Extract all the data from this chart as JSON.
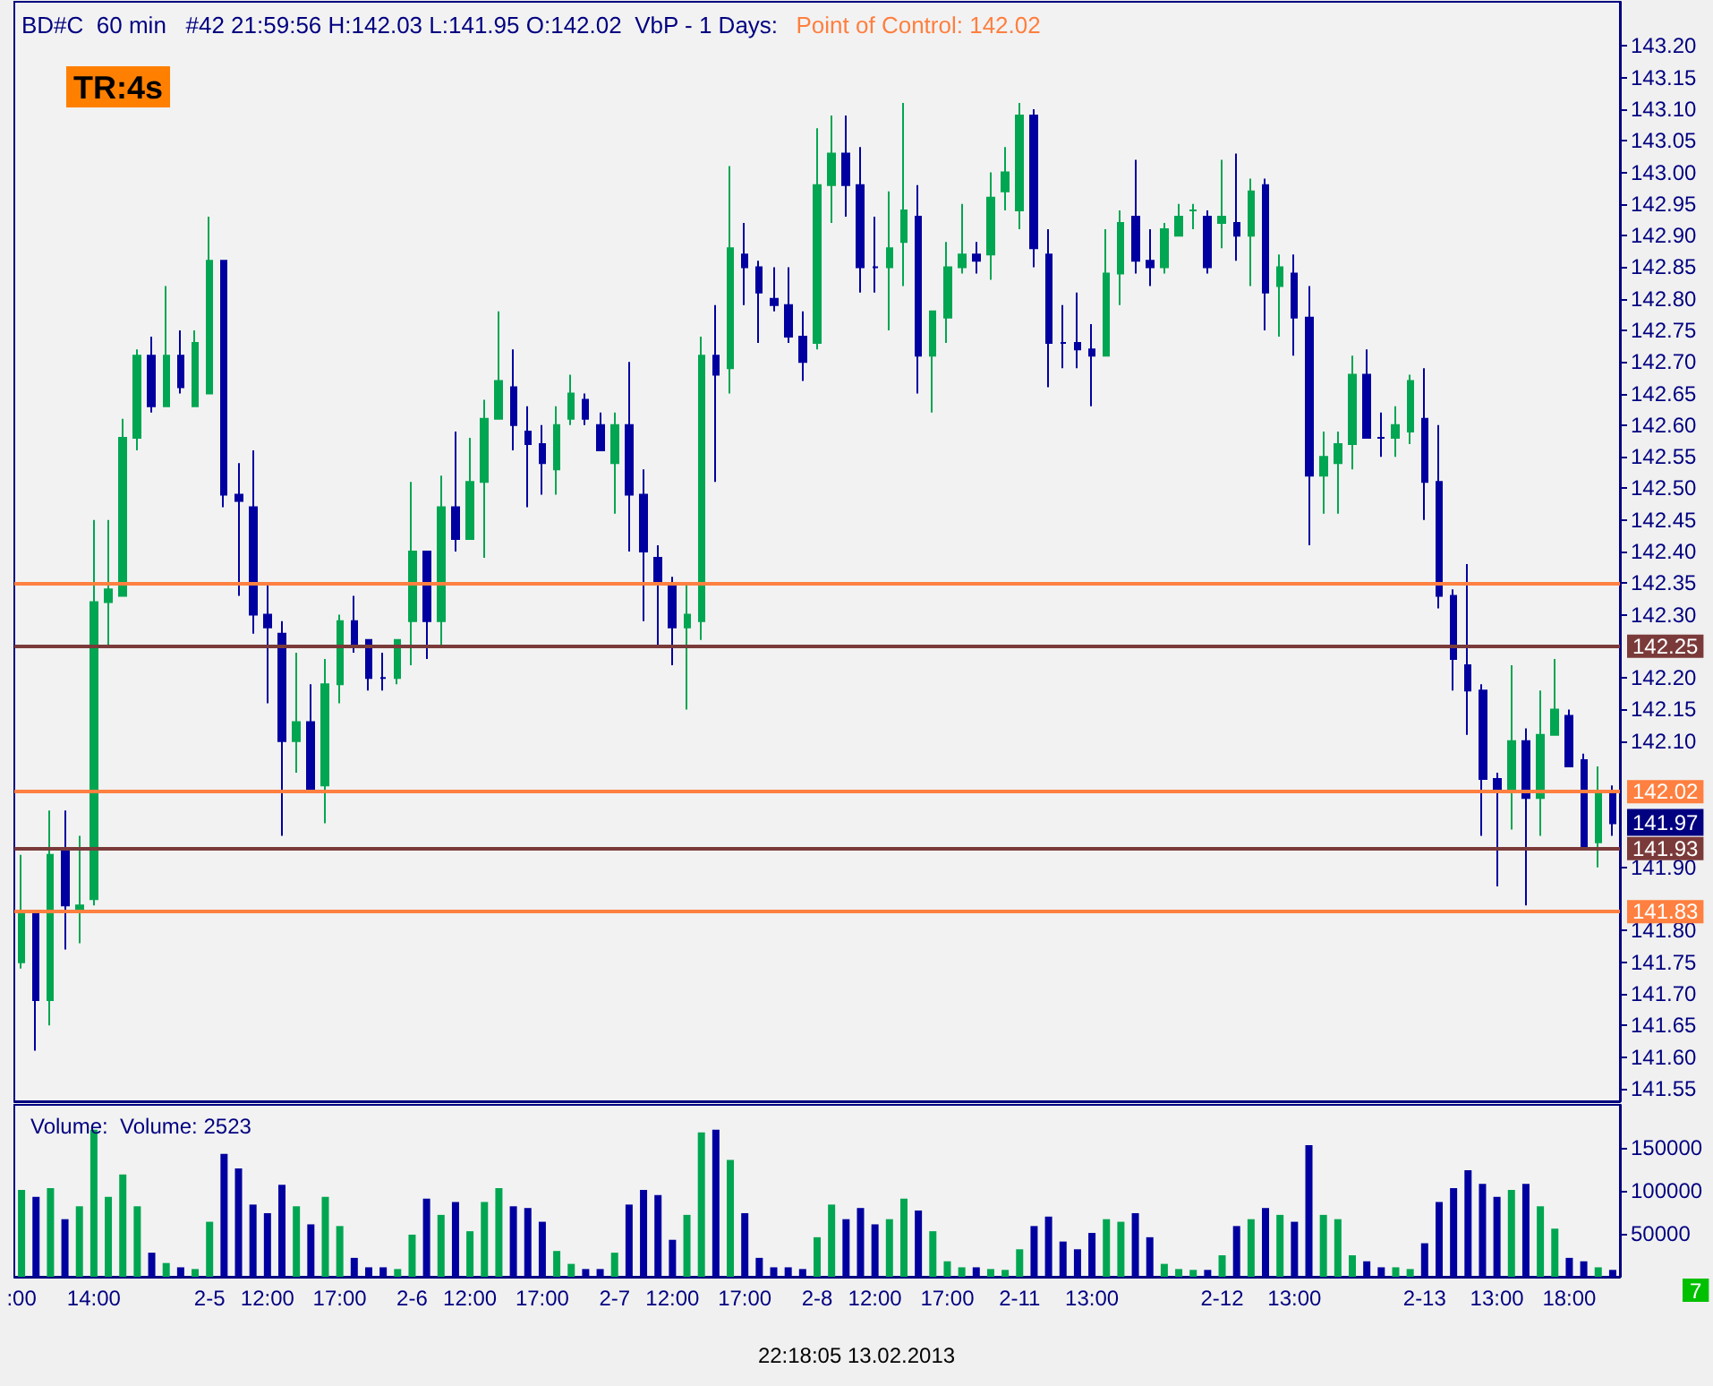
{
  "chart_data": [
    {
      "type": "candlestick",
      "title": "BD#C  60 min   #42 21:59:56 H:142.03 L:141.95 O:142.02  VbP - 1 Days:",
      "annotations": [
        "Point of Control: 142.02",
        "TR:4s",
        "141.97"
      ],
      "categories": [
        null,
        null,
        null,
        null,
        null,
        null,
        null,
        null,
        null,
        null,
        null,
        null,
        null,
        null,
        null,
        null,
        null,
        null,
        null,
        null,
        null,
        null,
        null,
        null,
        null,
        null,
        null,
        null,
        null,
        null,
        null,
        null,
        null,
        null,
        null,
        null,
        null,
        null,
        null,
        null,
        null,
        null,
        null,
        null,
        null,
        null,
        null,
        null,
        null,
        null,
        null,
        null,
        null,
        null,
        null,
        null,
        null,
        null,
        null,
        null,
        null,
        null,
        null,
        null,
        null,
        null,
        null,
        null,
        null,
        null,
        null,
        null,
        null,
        null,
        null,
        null,
        null,
        null,
        null,
        null,
        null,
        null,
        null,
        null,
        null,
        null,
        null,
        null,
        null,
        null,
        null,
        null,
        null,
        null,
        null,
        null,
        null,
        null,
        null,
        null,
        null,
        null,
        null,
        null,
        null,
        null,
        null,
        null,
        null,
        null,
        null
      ],
      "ohlc": [
        [
          141.75,
          141.92,
          141.74,
          141.83
        ],
        [
          141.83,
          141.83,
          141.61,
          141.69
        ],
        [
          141.69,
          141.99,
          141.65,
          141.92
        ],
        [
          141.93,
          141.99,
          141.77,
          141.84
        ],
        [
          141.83,
          141.95,
          141.78,
          141.84
        ],
        [
          141.85,
          142.45,
          141.84,
          142.32
        ],
        [
          142.32,
          142.45,
          142.25,
          142.34
        ],
        [
          142.33,
          142.61,
          142.33,
          142.58
        ],
        [
          142.58,
          142.72,
          142.56,
          142.71
        ],
        [
          142.71,
          142.74,
          142.62,
          142.63
        ],
        [
          142.63,
          142.82,
          142.63,
          142.71
        ],
        [
          142.71,
          142.75,
          142.65,
          142.66
        ],
        [
          142.63,
          142.75,
          142.63,
          142.73
        ],
        [
          142.65,
          142.93,
          142.65,
          142.86
        ],
        [
          142.86,
          142.86,
          142.47,
          142.49
        ],
        [
          142.49,
          142.54,
          142.33,
          142.48
        ],
        [
          142.47,
          142.56,
          142.27,
          142.3
        ],
        [
          142.3,
          142.35,
          142.16,
          142.28
        ],
        [
          142.27,
          142.29,
          141.95,
          142.1
        ],
        [
          142.1,
          142.24,
          142.05,
          142.13
        ],
        [
          142.13,
          142.19,
          142.02,
          142.02
        ],
        [
          142.03,
          142.23,
          141.97,
          142.19
        ],
        [
          142.19,
          142.3,
          142.16,
          142.29
        ],
        [
          142.29,
          142.33,
          142.24,
          142.25
        ],
        [
          142.26,
          142.26,
          142.18,
          142.2
        ],
        [
          142.2,
          142.24,
          142.18,
          142.2
        ],
        [
          142.2,
          142.26,
          142.19,
          142.26
        ],
        [
          142.29,
          142.51,
          142.22,
          142.4
        ],
        [
          142.4,
          142.4,
          142.23,
          142.29
        ],
        [
          142.29,
          142.52,
          142.25,
          142.47
        ],
        [
          142.47,
          142.59,
          142.4,
          142.42
        ],
        [
          142.42,
          142.58,
          142.42,
          142.51
        ],
        [
          142.51,
          142.64,
          142.39,
          142.61
        ],
        [
          142.61,
          142.78,
          142.61,
          142.67
        ],
        [
          142.66,
          142.72,
          142.56,
          142.6
        ],
        [
          142.59,
          142.63,
          142.47,
          142.57
        ],
        [
          142.57,
          142.6,
          142.49,
          142.54
        ],
        [
          142.53,
          142.63,
          142.49,
          142.6
        ],
        [
          142.61,
          142.68,
          142.6,
          142.65
        ],
        [
          142.64,
          142.65,
          142.6,
          142.61
        ],
        [
          142.6,
          142.62,
          142.56,
          142.56
        ],
        [
          142.54,
          142.62,
          142.46,
          142.6
        ],
        [
          142.6,
          142.7,
          142.4,
          142.49
        ],
        [
          142.49,
          142.53,
          142.29,
          142.4
        ],
        [
          142.39,
          142.41,
          142.25,
          142.35
        ],
        [
          142.35,
          142.36,
          142.22,
          142.28
        ],
        [
          142.28,
          142.35,
          142.15,
          142.3
        ],
        [
          142.29,
          142.74,
          142.26,
          142.71
        ],
        [
          142.71,
          142.79,
          142.51,
          142.68
        ],
        [
          142.69,
          143.01,
          142.65,
          142.88
        ],
        [
          142.87,
          142.92,
          142.79,
          142.85
        ],
        [
          142.85,
          142.86,
          142.73,
          142.81
        ],
        [
          142.8,
          142.85,
          142.78,
          142.79
        ],
        [
          142.79,
          142.85,
          142.73,
          142.74
        ],
        [
          142.74,
          142.78,
          142.67,
          142.7
        ],
        [
          142.73,
          143.07,
          142.72,
          142.98
        ],
        [
          142.98,
          143.09,
          142.92,
          143.03
        ],
        [
          143.03,
          143.09,
          142.93,
          142.98
        ],
        [
          142.98,
          143.04,
          142.81,
          142.85
        ],
        [
          142.85,
          142.93,
          142.81,
          142.85
        ],
        [
          142.85,
          142.97,
          142.75,
          142.88
        ],
        [
          142.89,
          143.11,
          142.82,
          142.94
        ],
        [
          142.93,
          142.98,
          142.65,
          142.71
        ],
        [
          142.71,
          142.78,
          142.62,
          142.78
        ],
        [
          142.77,
          142.89,
          142.73,
          142.85
        ],
        [
          142.85,
          142.95,
          142.84,
          142.87
        ],
        [
          142.87,
          142.89,
          142.84,
          142.86
        ],
        [
          142.87,
          143.0,
          142.83,
          142.96
        ],
        [
          142.97,
          143.04,
          142.94,
          143.0
        ],
        [
          142.94,
          143.11,
          142.91,
          143.09
        ],
        [
          143.09,
          143.1,
          142.85,
          142.88
        ],
        [
          142.87,
          142.91,
          142.66,
          142.73
        ],
        [
          142.73,
          142.79,
          142.69,
          142.73
        ],
        [
          142.73,
          142.81,
          142.69,
          142.72
        ],
        [
          142.72,
          142.76,
          142.63,
          142.71
        ],
        [
          142.71,
          142.91,
          142.71,
          142.84
        ],
        [
          142.84,
          142.94,
          142.79,
          142.92
        ],
        [
          142.93,
          143.02,
          142.84,
          142.86
        ],
        [
          142.86,
          142.91,
          142.82,
          142.85
        ],
        [
          142.85,
          142.92,
          142.84,
          142.91
        ],
        [
          142.9,
          142.95,
          142.9,
          142.93
        ],
        [
          142.94,
          142.95,
          142.91,
          142.94
        ],
        [
          142.93,
          142.94,
          142.84,
          142.85
        ],
        [
          142.92,
          143.02,
          142.88,
          142.93
        ],
        [
          142.92,
          143.03,
          142.86,
          142.9
        ],
        [
          142.9,
          142.99,
          142.82,
          142.97
        ],
        [
          142.98,
          142.99,
          142.75,
          142.81
        ],
        [
          142.82,
          142.87,
          142.74,
          142.85
        ],
        [
          142.84,
          142.87,
          142.71,
          142.77
        ],
        [
          142.77,
          142.82,
          142.41,
          142.52
        ],
        [
          142.52,
          142.59,
          142.46,
          142.55
        ],
        [
          142.54,
          142.59,
          142.46,
          142.57
        ],
        [
          142.57,
          142.71,
          142.53,
          142.68
        ],
        [
          142.68,
          142.72,
          142.58,
          142.58
        ],
        [
          142.58,
          142.62,
          142.55,
          142.58
        ],
        [
          142.58,
          142.63,
          142.55,
          142.6
        ],
        [
          142.59,
          142.68,
          142.57,
          142.67
        ],
        [
          142.61,
          142.69,
          142.45,
          142.51
        ],
        [
          142.51,
          142.6,
          142.31,
          142.33
        ],
        [
          142.33,
          142.34,
          142.18,
          142.23
        ],
        [
          142.22,
          142.38,
          142.11,
          142.18
        ],
        [
          142.18,
          142.19,
          141.95,
          142.04
        ],
        [
          142.04,
          142.05,
          141.87,
          142.02
        ],
        [
          142.02,
          142.22,
          141.96,
          142.1
        ],
        [
          142.1,
          142.12,
          141.84,
          142.01
        ],
        [
          142.01,
          142.18,
          141.95,
          142.11
        ],
        [
          142.11,
          142.23,
          142.11,
          142.15
        ],
        [
          142.14,
          142.15,
          142.06,
          142.06
        ],
        [
          142.07,
          142.08,
          141.93,
          141.93
        ],
        [
          141.94,
          142.06,
          141.9,
          142.02
        ],
        [
          142.02,
          142.03,
          141.95,
          141.97
        ]
      ],
      "colors": [
        "#00a651",
        "#0000a0",
        "#00a651",
        "#0000a0",
        "#00a651",
        "#00a651",
        "#00a651",
        "#00a651",
        "#00a651",
        "#0000a0",
        "#00a651",
        "#0000a0",
        "#00a651",
        "#00a651",
        "#0000a0",
        "#0000a0",
        "#0000a0",
        "#0000a0",
        "#0000a0",
        "#00a651",
        "#0000a0",
        "#00a651",
        "#00a651",
        "#0000a0",
        "#0000a0",
        "#0000a0",
        "#00a651",
        "#00a651",
        "#0000a0",
        "#00a651",
        "#0000a0",
        "#00a651",
        "#00a651",
        "#00a651",
        "#0000a0",
        "#0000a0",
        "#0000a0",
        "#00a651",
        "#00a651",
        "#0000a0",
        "#0000a0",
        "#00a651",
        "#0000a0",
        "#0000a0",
        "#0000a0",
        "#0000a0",
        "#00a651",
        "#00a651",
        "#0000a0",
        "#00a651",
        "#0000a0",
        "#0000a0",
        "#0000a0",
        "#0000a0",
        "#0000a0",
        "#00a651",
        "#00a651",
        "#0000a0",
        "#0000a0",
        "#0000a0",
        "#00a651",
        "#00a651",
        "#0000a0",
        "#00a651",
        "#00a651",
        "#00a651",
        "#0000a0",
        "#00a651",
        "#00a651",
        "#00a651",
        "#0000a0",
        "#0000a0",
        "#0000a0",
        "#0000a0",
        "#0000a0",
        "#00a651",
        "#00a651",
        "#0000a0",
        "#0000a0",
        "#00a651",
        "#00a651",
        "#00a651",
        "#0000a0",
        "#00a651",
        "#0000a0",
        "#00a651",
        "#0000a0",
        "#00a651",
        "#0000a0",
        "#0000a0",
        "#00a651",
        "#00a651",
        "#00a651",
        "#0000a0",
        "#0000a0",
        "#00a651",
        "#00a651",
        "#0000a0",
        "#0000a0",
        "#0000a0",
        "#0000a0",
        "#0000a0",
        "#0000a0",
        "#00a651",
        "#0000a0",
        "#00a651",
        "#00a651",
        "#0000a0",
        "#0000a0",
        "#00a651",
        "#0000a0"
      ],
      "ylim": [
        141.53,
        143.27
      ],
      "yticks": [
        141.55,
        {
          "value": 141.6,
          "label": "141.60"
        },
        141.65,
        {
          "value": 141.7,
          "label": "141.70"
        },
        141.75,
        {
          "value": 141.8,
          "label": "141.80"
        },
        {
          "value": 141.9,
          "label": "141.90"
        },
        {
          "value": 142.1,
          "label": "142.10"
        },
        142.15,
        {
          "value": 142.2,
          "label": "142.20"
        },
        {
          "value": 142.3,
          "label": "142.30"
        },
        142.35,
        {
          "value": 142.4,
          "label": "142.40"
        },
        142.45,
        {
          "value": 142.5,
          "label": "142.50"
        },
        142.55,
        {
          "value": 142.6,
          "label": "142.60"
        },
        142.65,
        {
          "value": 142.7,
          "label": "142.70"
        },
        142.75,
        {
          "value": 142.8,
          "label": "142.80"
        },
        142.85,
        {
          "value": 142.9,
          "label": "142.90"
        },
        142.95,
        {
          "value": 143,
          "label": "143.00"
        },
        143.05,
        {
          "value": 143.1,
          "label": "143.10"
        },
        143.15,
        {
          "value": 143.2,
          "label": "143.20"
        }
      ],
      "ref_lines": [
        {
          "axis": "y",
          "value": 142.35,
          "label": null,
          "color": "#ff8040"
        },
        {
          "axis": "y",
          "value": 142.25,
          "label": "142.25",
          "color": "#7b3a3a"
        },
        {
          "axis": "y",
          "value": 142.02,
          "label": "142.02",
          "color": "#ff8040"
        },
        {
          "axis": "y",
          "value": 141.93,
          "label": "141.93",
          "color": "#7b3a3a"
        },
        {
          "axis": "y",
          "value": 141.83,
          "label": "141.83",
          "color": "#ff8040"
        }
      ],
      "tick_labels": "y"
    },
    {
      "type": "bar",
      "title": "Volume:  Volume: 2523",
      "annotations": [
        "22:18:05 13.02.2013",
        "7"
      ],
      "categories": [
        ":00",
        null,
        null,
        null,
        null,
        "14:00",
        null,
        null,
        null,
        null,
        null,
        null,
        null,
        "2-5",
        null,
        null,
        null,
        "12:00",
        null,
        null,
        null,
        null,
        "17:00",
        null,
        null,
        null,
        null,
        "2-6",
        null,
        null,
        null,
        "12:00",
        null,
        null,
        null,
        null,
        "17:00",
        null,
        null,
        null,
        null,
        "2-7",
        null,
        null,
        null,
        "12:00",
        null,
        null,
        null,
        null,
        "17:00",
        null,
        null,
        null,
        null,
        "2-8",
        null,
        null,
        null,
        "12:00",
        null,
        null,
        null,
        null,
        "17:00",
        null,
        null,
        null,
        null,
        "2-11",
        null,
        null,
        null,
        null,
        "13:00",
        null,
        null,
        null,
        null,
        null,
        null,
        null,
        null,
        "2-12",
        null,
        null,
        null,
        null,
        "13:00",
        null,
        null,
        null,
        null,
        null,
        null,
        null,
        null,
        "2-13",
        null,
        null,
        null,
        null,
        "13:00",
        null,
        null,
        null,
        null,
        "18:00",
        null,
        null,
        null
      ],
      "values": [
        101000,
        93000,
        103000,
        67000,
        82000,
        171000,
        93000,
        119000,
        82000,
        28000,
        16000,
        11000,
        9000,
        64000,
        143000,
        126000,
        84000,
        74000,
        107000,
        82000,
        61000,
        93000,
        59000,
        22000,
        11000,
        11000,
        9000,
        49000,
        91000,
        72000,
        87000,
        53000,
        87000,
        103000,
        82000,
        80000,
        64000,
        30000,
        15000,
        9000,
        9000,
        28000,
        84000,
        101000,
        95000,
        43000,
        72000,
        168000,
        171000,
        136000,
        74000,
        22000,
        11000,
        11000,
        9000,
        46000,
        84000,
        67000,
        80000,
        61000,
        67000,
        91000,
        77000,
        53000,
        18000,
        11000,
        11000,
        9000,
        8000,
        32000,
        59000,
        70000,
        41000,
        32000,
        51000,
        67000,
        64000,
        74000,
        46000,
        15000,
        9000,
        8000,
        8000,
        25000,
        59000,
        67000,
        80000,
        72000,
        64000,
        153000,
        72000,
        67000,
        25000,
        18000,
        11000,
        11000,
        9000,
        39000,
        87000,
        103000,
        124000,
        108000,
        93000,
        101000,
        108000,
        82000,
        56000,
        22000,
        18000,
        11000,
        8000
      ],
      "colors": [
        "#00a651",
        "#0000a0",
        "#00a651",
        "#0000a0",
        "#00a651",
        "#00a651",
        "#00a651",
        "#00a651",
        "#00a651",
        "#0000a0",
        "#00a651",
        "#0000a0",
        "#00a651",
        "#00a651",
        "#0000a0",
        "#0000a0",
        "#0000a0",
        "#0000a0",
        "#0000a0",
        "#00a651",
        "#0000a0",
        "#00a651",
        "#00a651",
        "#0000a0",
        "#0000a0",
        "#0000a0",
        "#00a651",
        "#00a651",
        "#0000a0",
        "#00a651",
        "#0000a0",
        "#00a651",
        "#00a651",
        "#00a651",
        "#0000a0",
        "#0000a0",
        "#0000a0",
        "#00a651",
        "#00a651",
        "#0000a0",
        "#0000a0",
        "#00a651",
        "#0000a0",
        "#0000a0",
        "#0000a0",
        "#0000a0",
        "#00a651",
        "#00a651",
        "#0000a0",
        "#00a651",
        "#0000a0",
        "#0000a0",
        "#0000a0",
        "#0000a0",
        "#0000a0",
        "#00a651",
        "#00a651",
        "#0000a0",
        "#0000a0",
        "#0000a0",
        "#00a651",
        "#00a651",
        "#0000a0",
        "#00a651",
        "#00a651",
        "#00a651",
        "#0000a0",
        "#00a651",
        "#00a651",
        "#00a651",
        "#0000a0",
        "#0000a0",
        "#0000a0",
        "#0000a0",
        "#0000a0",
        "#00a651",
        "#00a651",
        "#0000a0",
        "#0000a0",
        "#00a651",
        "#00a651",
        "#00a651",
        "#0000a0",
        "#00a651",
        "#0000a0",
        "#00a651",
        "#0000a0",
        "#00a651",
        "#0000a0",
        "#0000a0",
        "#00a651",
        "#00a651",
        "#00a651",
        "#0000a0",
        "#0000a0",
        "#00a651",
        "#00a651",
        "#0000a0",
        "#0000a0",
        "#0000a0",
        "#0000a0",
        "#0000a0",
        "#0000a0",
        "#00a651",
        "#0000a0",
        "#00a651",
        "#00a651",
        "#0000a0",
        "#0000a0",
        "#00a651",
        "#0000a0"
      ],
      "ylim": [
        0,
        200000
      ],
      "yticks": [
        50000,
        100000,
        150000
      ]
    }
  ]
}
